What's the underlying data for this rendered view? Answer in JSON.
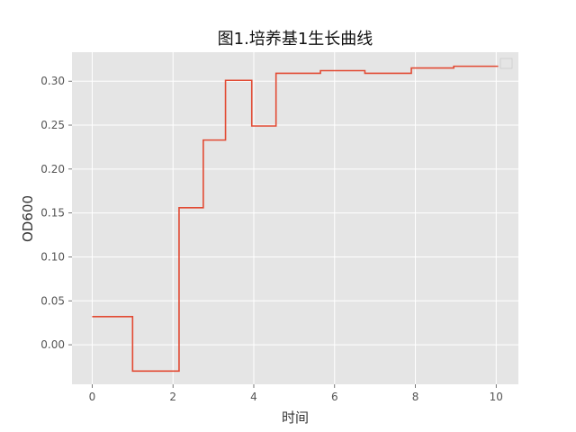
{
  "chart_data": {
    "type": "line",
    "title": "图1.培养基1生长曲线",
    "xlabel": "时间",
    "ylabel": "OD600",
    "xlim": [
      -0.5,
      10.55
    ],
    "ylim": [
      -0.045,
      0.333
    ],
    "xticks": [
      0,
      2,
      4,
      6,
      8,
      10
    ],
    "xtick_labels": [
      "0",
      "2",
      "4",
      "6",
      "8",
      "10"
    ],
    "yticks": [
      0.0,
      0.05,
      0.1,
      0.15,
      0.2,
      0.25,
      0.3
    ],
    "ytick_labels": [
      "0.00",
      "0.05",
      "0.10",
      "0.15",
      "0.20",
      "0.25",
      "0.30"
    ],
    "grid": true,
    "legend": "top-right (empty)",
    "background": "#E5E5E5",
    "grid_color": "#FFFFFF",
    "series": [
      {
        "color": "#E24A33",
        "x": [
          0,
          1,
          1,
          2.15,
          2.15,
          2.75,
          2.75,
          3.3,
          3.3,
          3.95,
          3.95,
          4.55,
          4.55,
          5.65,
          5.65,
          6.75,
          6.75,
          7.9,
          7.9,
          8.95,
          8.95,
          10.05
        ],
        "y": [
          0.032,
          0.032,
          -0.03,
          -0.03,
          0.156,
          0.156,
          0.233,
          0.233,
          0.301,
          0.301,
          0.249,
          0.249,
          0.309,
          0.309,
          0.312,
          0.312,
          0.309,
          0.309,
          0.315,
          0.315,
          0.317,
          0.317
        ]
      }
    ]
  }
}
